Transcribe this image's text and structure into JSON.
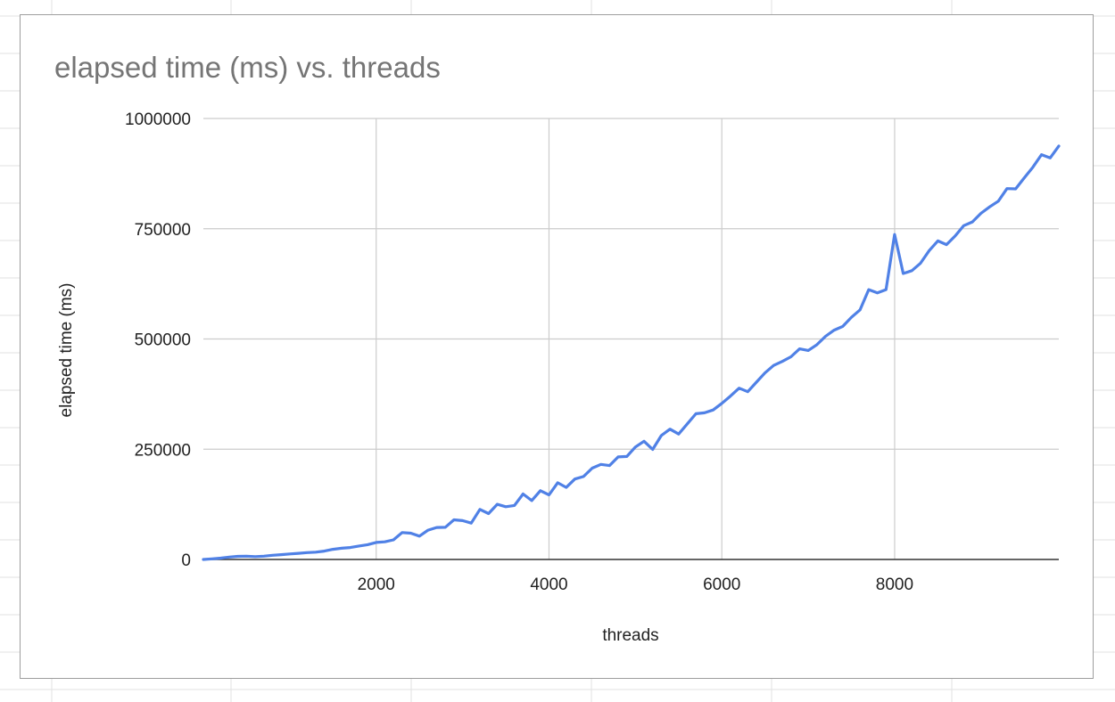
{
  "colors": {
    "series_line": "#5081e6",
    "gridline": "#cccccc",
    "axis": "#333333",
    "title": "#757575",
    "sheet_grid": "#e2e2e2"
  },
  "chart_data": {
    "type": "line",
    "title": "elapsed time (ms) vs. threads",
    "xlabel": "threads",
    "ylabel": "elapsed time (ms)",
    "xlim": [
      0,
      9900
    ],
    "ylim": [
      0,
      1000000
    ],
    "xticks": [
      2000,
      4000,
      6000,
      8000
    ],
    "xtick_labels": [
      "2000",
      "4000",
      "6000",
      "8000"
    ],
    "yticks": [
      0,
      250000,
      500000,
      750000,
      1000000
    ],
    "ytick_labels": [
      "0",
      "250000",
      "500000",
      "750000",
      "1000000"
    ],
    "grid": true,
    "legend": "none",
    "series": [
      {
        "name": "elapsed time (ms)",
        "x": [
          0,
          100,
          200,
          300,
          400,
          500,
          600,
          700,
          800,
          900,
          1000,
          1100,
          1200,
          1300,
          1400,
          1500,
          1600,
          1700,
          1800,
          1900,
          2000,
          2100,
          2200,
          2300,
          2400,
          2500,
          2600,
          2700,
          2800,
          2900,
          3000,
          3100,
          3200,
          3300,
          3400,
          3500,
          3600,
          3700,
          3800,
          3900,
          4000,
          4100,
          4200,
          4300,
          4400,
          4500,
          4600,
          4700,
          4800,
          4900,
          5000,
          5100,
          5200,
          5300,
          5400,
          5500,
          5600,
          5700,
          5800,
          5900,
          6000,
          6100,
          6200,
          6300,
          6400,
          6500,
          6600,
          6700,
          6800,
          6900,
          7000,
          7100,
          7200,
          7300,
          7400,
          7500,
          7600,
          7700,
          7800,
          7900,
          8000,
          8100,
          8200,
          8300,
          8400,
          8500,
          8600,
          8700,
          8800,
          8900,
          9000,
          9100,
          9200,
          9300,
          9400,
          9500,
          9600,
          9700,
          9800,
          9900
        ],
        "values": [
          0,
          1500,
          3000,
          5500,
          7000,
          7500,
          6500,
          7500,
          9500,
          11000,
          12500,
          14000,
          15500,
          16500,
          19000,
          23000,
          25500,
          27000,
          30500,
          33500,
          38500,
          40000,
          44500,
          61000,
          59500,
          53000,
          66500,
          72500,
          73000,
          90000,
          88000,
          82500,
          113500,
          104000,
          125000,
          119500,
          122500,
          148500,
          133500,
          156000,
          146500,
          174000,
          163500,
          182500,
          188000,
          207000,
          215500,
          213000,
          232500,
          233500,
          255000,
          268000,
          249500,
          281000,
          295500,
          284500,
          307500,
          330500,
          332500,
          339000,
          354000,
          370500,
          388500,
          380500,
          402000,
          423000,
          440000,
          449000,
          459500,
          477500,
          474000,
          487000,
          506000,
          520000,
          528500,
          549000,
          566000,
          612000,
          604500,
          612000,
          737000,
          648500,
          655000,
          672000,
          700500,
          722500,
          714000,
          733500,
          757000,
          765500,
          785000,
          799500,
          812500,
          841000,
          840500,
          865500,
          889500,
          918000,
          910500,
          937500
        ]
      }
    ]
  }
}
